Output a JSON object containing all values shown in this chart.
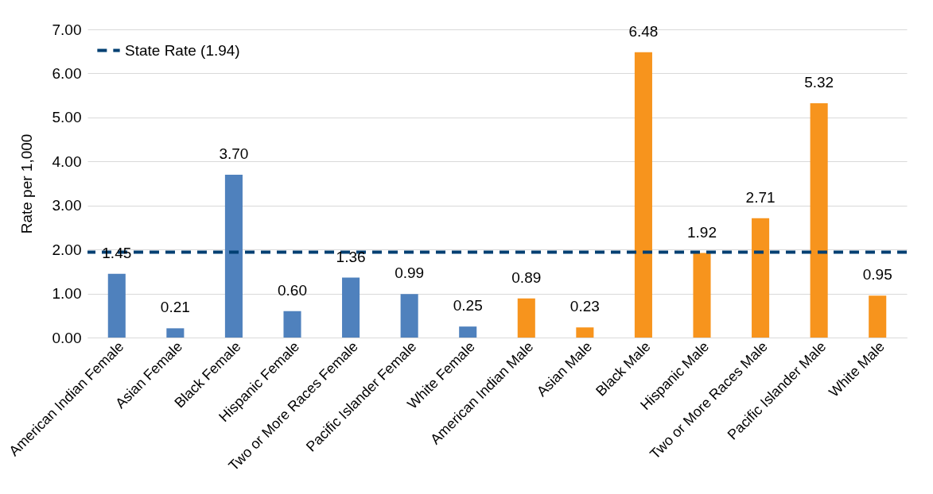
{
  "chart_data": {
    "type": "bar",
    "ylabel": "Rate per 1,000",
    "categories": [
      "American Indian Female",
      "Asian Female",
      "Black Female",
      "Hispanic Female",
      "Two or More Races Female",
      "Pacific Islander Female",
      "White Female",
      "American Indian Male",
      "Asian Male",
      "Black Male",
      "Hispanic Male",
      "Two or More Races Male",
      "Pacific Islander Male",
      "White Male"
    ],
    "values": [
      1.45,
      0.21,
      3.7,
      0.6,
      1.36,
      0.99,
      0.25,
      0.89,
      0.23,
      6.48,
      1.92,
      2.71,
      5.32,
      0.95
    ],
    "value_labels": [
      "1.45",
      "0.21",
      "3.70",
      "0.60",
      "1.36",
      "0.99",
      "0.25",
      "0.89",
      "0.23",
      "6.48",
      "1.92",
      "2.71",
      "5.32",
      "0.95"
    ],
    "colors": [
      "#4f81bd",
      "#4f81bd",
      "#4f81bd",
      "#4f81bd",
      "#4f81bd",
      "#4f81bd",
      "#4f81bd",
      "#f7941d",
      "#f7941d",
      "#f7941d",
      "#f7941d",
      "#f7941d",
      "#f7941d",
      "#f7941d"
    ],
    "ylim": [
      0,
      7
    ],
    "yticks": [
      {
        "value": 0,
        "label": "0.00"
      },
      {
        "value": 1,
        "label": "1.00"
      },
      {
        "value": 2,
        "label": "2.00"
      },
      {
        "value": 3,
        "label": "3.00"
      },
      {
        "value": 4,
        "label": "4.00"
      },
      {
        "value": 5,
        "label": "5.00"
      },
      {
        "value": 6,
        "label": "6.00"
      },
      {
        "value": 7,
        "label": "7.00"
      }
    ],
    "ref_lines": [
      {
        "axis": "y",
        "value": 1.94,
        "label": "State Rate (1.94)",
        "color": "#003f72",
        "line_style": "dashed"
      }
    ],
    "grid": "y",
    "legend": "top left"
  }
}
